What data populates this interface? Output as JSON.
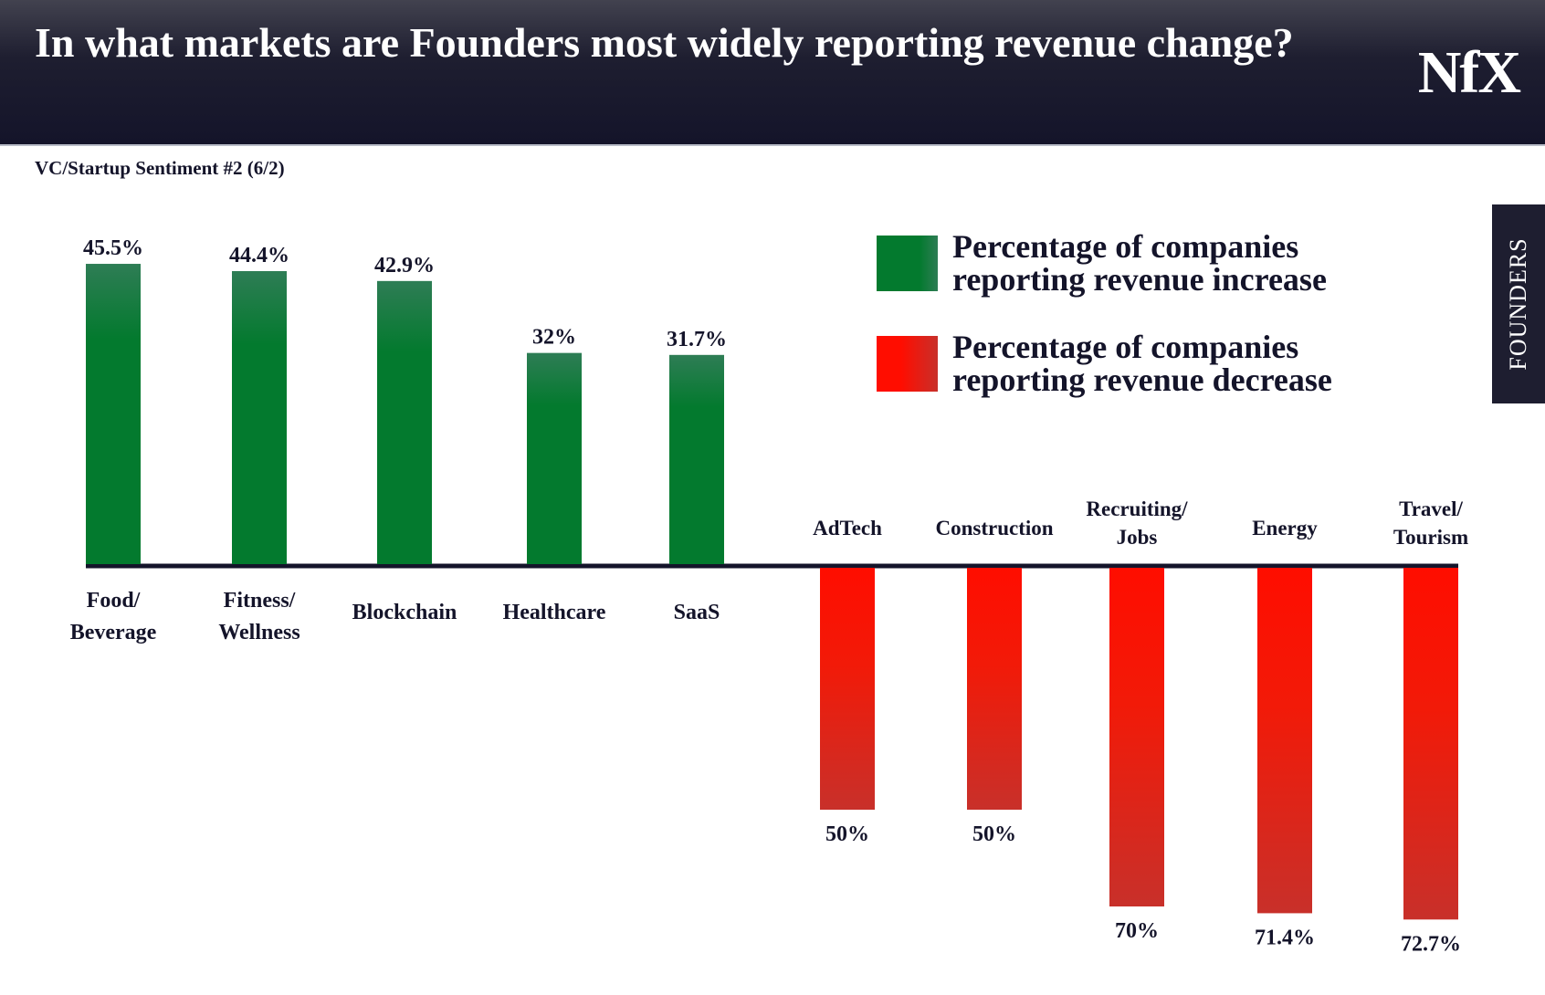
{
  "header": {
    "title": "In what markets are Founders most widely reporting revenue change?",
    "logo": "NfX",
    "subtitle": "VC/Startup Sentiment #2 (6/2)",
    "side_tab": "FOUNDERS"
  },
  "chart_data": {
    "type": "bar",
    "title": "In what markets are Founders most widely reporting revenue change?",
    "subtitle": "VC/Startup Sentiment #2 (6/2)",
    "legend_position": "top-right",
    "series": [
      {
        "name": "Percentage of companies reporting revenue increase",
        "color": "#037a2e",
        "direction": "up",
        "categories": [
          [
            "Food/",
            "Beverage"
          ],
          [
            "Fitness/",
            "Wellness"
          ],
          [
            "Blockchain"
          ],
          [
            "Healthcare"
          ],
          [
            "SaaS"
          ]
        ],
        "values": [
          45.5,
          44.4,
          42.9,
          32,
          31.7
        ],
        "labels": [
          "45.5%",
          "44.4%",
          "42.9%",
          "32%",
          "31.7%"
        ]
      },
      {
        "name": "Percentage of companies reporting revenue decrease",
        "color": "#ff0d00",
        "direction": "down",
        "categories": [
          [
            "AdTech"
          ],
          [
            "Construction"
          ],
          [
            "Recruiting/",
            "Jobs"
          ],
          [
            "Energy"
          ],
          [
            "Travel/",
            "Tourism"
          ]
        ],
        "values": [
          50,
          50,
          70,
          71.4,
          72.7
        ],
        "labels": [
          "50%",
          "50%",
          "70%",
          "71.4%",
          "72.7%"
        ]
      }
    ],
    "legend": [
      [
        "Percentage of companies",
        "reporting revenue increase"
      ],
      [
        "Percentage of companies",
        "reporting revenue decrease"
      ]
    ]
  }
}
